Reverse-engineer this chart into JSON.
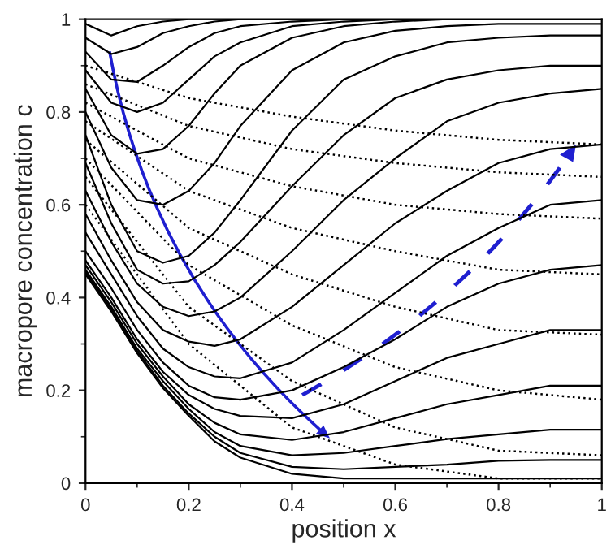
{
  "chart_data": {
    "type": "line",
    "xlabel": "position x",
    "ylabel": "macropore concentration c",
    "xlim": [
      0,
      1
    ],
    "ylim": [
      0,
      1
    ],
    "xticks": [
      0,
      0.2,
      0.4,
      0.6,
      0.8,
      1
    ],
    "yticks": [
      0,
      0.2,
      0.4,
      0.6,
      0.8,
      1
    ],
    "grid": false,
    "legend": false,
    "marker": "none",
    "x": [
      0,
      0.05,
      0.1,
      0.15,
      0.2,
      0.25,
      0.3,
      0.4,
      0.5,
      0.6,
      0.7,
      0.8,
      0.9,
      1
    ],
    "series": [
      {
        "color": "#000000",
        "line_style": "solid",
        "values": [
          0.99,
          0.965,
          0.985,
          0.995,
          1,
          1,
          1,
          1,
          1,
          1,
          1,
          1,
          1,
          1
        ]
      },
      {
        "color": "#000000",
        "line_style": "solid",
        "values": [
          0.96,
          0.925,
          0.94,
          0.97,
          0.985,
          0.995,
          1,
          1,
          1,
          1,
          1,
          1,
          1,
          1
        ]
      },
      {
        "color": "#000000",
        "line_style": "solid",
        "values": [
          0.93,
          0.87,
          0.865,
          0.9,
          0.94,
          0.97,
          0.985,
          0.995,
          1,
          1,
          1,
          1,
          1,
          1
        ]
      },
      {
        "color": "#000000",
        "line_style": "solid",
        "values": [
          0.89,
          0.82,
          0.8,
          0.82,
          0.87,
          0.92,
          0.95,
          0.985,
          0.995,
          1,
          1,
          1,
          1,
          1
        ]
      },
      {
        "color": "#000000",
        "line_style": "solid",
        "values": [
          0.85,
          0.75,
          0.71,
          0.72,
          0.77,
          0.84,
          0.9,
          0.96,
          0.985,
          0.995,
          1,
          1,
          1,
          1
        ]
      },
      {
        "color": "#000000",
        "line_style": "solid",
        "values": [
          0.8,
          0.68,
          0.61,
          0.6,
          0.63,
          0.69,
          0.77,
          0.89,
          0.95,
          0.975,
          0.985,
          0.99,
          0.99,
          0.99
        ]
      },
      {
        "color": "#000000",
        "line_style": "solid",
        "values": [
          0.75,
          0.6,
          0.5,
          0.475,
          0.49,
          0.54,
          0.61,
          0.76,
          0.87,
          0.92,
          0.95,
          0.96,
          0.965,
          0.965
        ]
      },
      {
        "color": "#000000",
        "line_style": "solid",
        "values": [
          0.69,
          0.56,
          0.46,
          0.43,
          0.435,
          0.47,
          0.52,
          0.64,
          0.75,
          0.83,
          0.87,
          0.89,
          0.9,
          0.9
        ]
      },
      {
        "color": "#000000",
        "line_style": "solid",
        "values": [
          0.63,
          0.52,
          0.43,
          0.38,
          0.36,
          0.37,
          0.4,
          0.5,
          0.61,
          0.7,
          0.78,
          0.82,
          0.84,
          0.85
        ]
      },
      {
        "color": "#000000",
        "line_style": "solid",
        "values": [
          0.58,
          0.48,
          0.39,
          0.33,
          0.305,
          0.296,
          0.31,
          0.38,
          0.47,
          0.56,
          0.63,
          0.69,
          0.72,
          0.73
        ]
      },
      {
        "color": "#000000",
        "line_style": "solid",
        "values": [
          0.54,
          0.45,
          0.36,
          0.29,
          0.25,
          0.23,
          0.226,
          0.26,
          0.33,
          0.41,
          0.49,
          0.55,
          0.6,
          0.61
        ]
      },
      {
        "color": "#000000",
        "line_style": "solid",
        "values": [
          0.5,
          0.42,
          0.33,
          0.26,
          0.21,
          0.185,
          0.18,
          0.2,
          0.25,
          0.31,
          0.38,
          0.43,
          0.46,
          0.47
        ]
      },
      {
        "color": "#000000",
        "line_style": "solid",
        "values": [
          0.48,
          0.4,
          0.31,
          0.24,
          0.19,
          0.16,
          0.145,
          0.14,
          0.17,
          0.22,
          0.27,
          0.3,
          0.33,
          0.33
        ]
      },
      {
        "color": "#000000",
        "line_style": "solid",
        "values": [
          0.47,
          0.39,
          0.3,
          0.23,
          0.17,
          0.13,
          0.105,
          0.093,
          0.11,
          0.14,
          0.17,
          0.19,
          0.21,
          0.21
        ]
      },
      {
        "color": "#000000",
        "line_style": "solid",
        "values": [
          0.46,
          0.38,
          0.29,
          0.22,
          0.16,
          0.11,
          0.08,
          0.06,
          0.065,
          0.08,
          0.095,
          0.105,
          0.115,
          0.115
        ]
      },
      {
        "color": "#000000",
        "line_style": "solid",
        "values": [
          0.455,
          0.375,
          0.285,
          0.21,
          0.15,
          0.1,
          0.065,
          0.035,
          0.03,
          0.035,
          0.04,
          0.048,
          0.05,
          0.05
        ]
      },
      {
        "color": "#000000",
        "line_style": "solid",
        "values": [
          0.45,
          0.37,
          0.28,
          0.205,
          0.145,
          0.09,
          0.055,
          0.02,
          0.01,
          0.01,
          0.01,
          0.01,
          0.01,
          0.01
        ]
      },
      {
        "color": "#000000",
        "line_style": "dotted",
        "x": [
          0,
          0.2,
          0.4,
          0.6,
          0.8,
          1
        ],
        "values": [
          0.9,
          0.83,
          0.79,
          0.76,
          0.74,
          0.73
        ]
      },
      {
        "color": "#000000",
        "line_style": "dotted",
        "x": [
          0,
          0.2,
          0.4,
          0.6,
          0.8,
          1
        ],
        "values": [
          0.86,
          0.77,
          0.72,
          0.69,
          0.67,
          0.66
        ]
      },
      {
        "color": "#000000",
        "line_style": "dotted",
        "x": [
          0,
          0.2,
          0.4,
          0.6,
          0.8,
          1
        ],
        "values": [
          0.82,
          0.7,
          0.64,
          0.6,
          0.58,
          0.57
        ]
      },
      {
        "color": "#000000",
        "line_style": "dotted",
        "x": [
          0,
          0.2,
          0.4,
          0.6,
          0.8,
          1
        ],
        "values": [
          0.78,
          0.63,
          0.55,
          0.5,
          0.46,
          0.45
        ]
      },
      {
        "color": "#000000",
        "line_style": "dotted",
        "x": [
          0,
          0.2,
          0.4,
          0.6,
          0.8,
          1
        ],
        "values": [
          0.74,
          0.55,
          0.45,
          0.38,
          0.33,
          0.32
        ]
      },
      {
        "color": "#000000",
        "line_style": "dotted",
        "x": [
          0,
          0.2,
          0.4,
          0.6,
          0.8,
          1
        ],
        "values": [
          0.7,
          0.47,
          0.34,
          0.25,
          0.2,
          0.18
        ]
      },
      {
        "color": "#000000",
        "line_style": "dotted",
        "x": [
          0,
          0.2,
          0.4,
          0.6,
          0.8,
          1
        ],
        "values": [
          0.66,
          0.38,
          0.22,
          0.12,
          0.07,
          0.06
        ]
      },
      {
        "color": "#000000",
        "line_style": "dotted",
        "x": [
          0,
          0.2,
          0.4,
          0.6,
          0.8,
          1
        ],
        "values": [
          0.6,
          0.3,
          0.12,
          0.04,
          0.01,
          0.01
        ]
      }
    ]
  }
}
